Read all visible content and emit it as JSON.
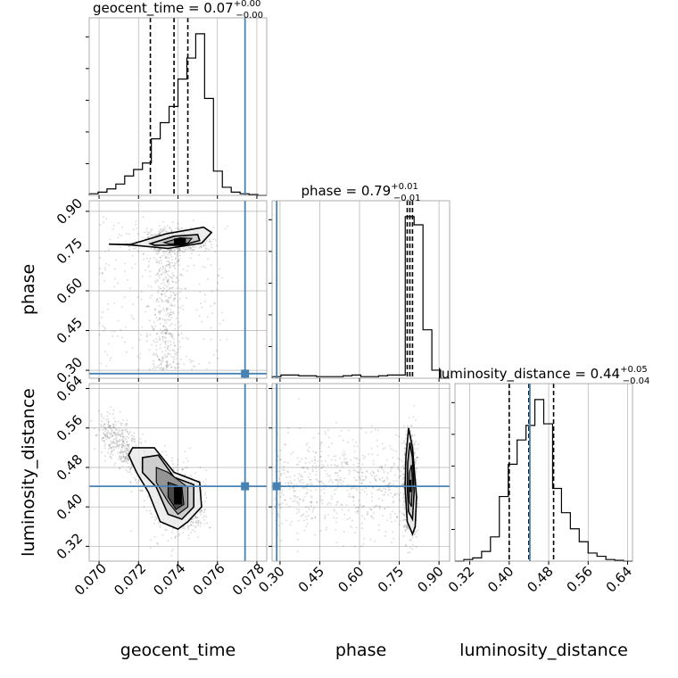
{
  "chart_data": {
    "type": "corner",
    "true_color": "#4682b4",
    "parameters": [
      {
        "name": "geocent_time",
        "axis_label": "geocent_time",
        "range": [
          0.0695,
          0.0785
        ],
        "ticks": [
          0.07,
          0.072,
          0.074,
          0.076,
          0.078
        ],
        "tick_labels": [
          "0.070",
          "0.072",
          "0.074",
          "0.076",
          "0.078"
        ],
        "true_value": 0.0774,
        "quantiles": [
          0.0726,
          0.0738,
          0.0745
        ],
        "title_prefix": "geocent_time = 0.07",
        "title_plus": "+0.00",
        "title_minus": "−0.00",
        "hist": {
          "edges_start": 0.0695,
          "bin_width": 0.00045,
          "counts": [
            0.01,
            0.02,
            0.04,
            0.07,
            0.12,
            0.16,
            0.2,
            0.35,
            0.45,
            0.55,
            0.72,
            0.85,
            1.0,
            0.6,
            0.15,
            0.05,
            0.02,
            0.01,
            0.005,
            0.0
          ]
        }
      },
      {
        "name": "phase",
        "axis_label": "phase",
        "range": [
          0.27,
          0.94
        ],
        "ticks": [
          0.3,
          0.45,
          0.6,
          0.75,
          0.9
        ],
        "tick_labels": [
          "0.30",
          "0.45",
          "0.60",
          "0.75",
          "0.90"
        ],
        "true_value": 0.2874,
        "quantiles": [
          0.78,
          0.79,
          0.8
        ],
        "title_prefix": "phase = 0.79",
        "title_plus": "+0.01",
        "title_minus": "−0.01",
        "hist": {
          "edges_start": 0.27,
          "bin_width": 0.0335,
          "counts": [
            0.01,
            0.02,
            0.02,
            0.015,
            0.015,
            0.01,
            0.01,
            0.01,
            0.015,
            0.02,
            0.01,
            0.01,
            0.015,
            0.02,
            0.02,
            1.0,
            0.95,
            0.3,
            0.05,
            0.0
          ]
        }
      },
      {
        "name": "luminosity_distance",
        "axis_label": "luminosity_distance",
        "range": [
          0.29,
          0.65
        ],
        "ticks": [
          0.32,
          0.4,
          0.48,
          0.56,
          0.64
        ],
        "tick_labels": [
          "0.32",
          "0.40",
          "0.48",
          "0.56",
          "0.64"
        ],
        "true_value": 0.4418,
        "quantiles": [
          0.4,
          0.44,
          0.49
        ],
        "title_prefix": "luminosity_distance = 0.44",
        "title_plus": "+0.05",
        "title_minus": "−0.04",
        "hist": {
          "edges_start": 0.29,
          "bin_width": 0.018,
          "counts": [
            0.0,
            0.01,
            0.02,
            0.06,
            0.15,
            0.4,
            0.6,
            0.75,
            0.84,
            1.0,
            0.85,
            0.45,
            0.3,
            0.2,
            0.12,
            0.05,
            0.03,
            0.01,
            0.005,
            0.0
          ]
        }
      }
    ],
    "contours": {
      "1-0": [
        [
          [
            0.0716,
            0.775
          ],
          [
            0.0734,
            0.815
          ],
          [
            0.0753,
            0.84
          ],
          [
            0.0757,
            0.82
          ],
          [
            0.0752,
            0.78
          ],
          [
            0.0735,
            0.76
          ],
          [
            0.0716,
            0.773
          ],
          [
            0.0705,
            0.776
          ],
          [
            0.0716,
            0.775
          ]
        ],
        [
          [
            0.0726,
            0.778
          ],
          [
            0.0738,
            0.806
          ],
          [
            0.075,
            0.812
          ],
          [
            0.0751,
            0.79
          ],
          [
            0.0742,
            0.772
          ],
          [
            0.0728,
            0.772
          ],
          [
            0.0726,
            0.778
          ]
        ],
        [
          [
            0.0733,
            0.782
          ],
          [
            0.0741,
            0.8
          ],
          [
            0.0747,
            0.798
          ],
          [
            0.0745,
            0.78
          ],
          [
            0.0736,
            0.776
          ],
          [
            0.0733,
            0.782
          ]
        ]
      ],
      "2-0": [
        [
          [
            0.0717,
            0.52
          ],
          [
            0.0728,
            0.52
          ],
          [
            0.0738,
            0.47
          ],
          [
            0.0751,
            0.45
          ],
          [
            0.0752,
            0.4
          ],
          [
            0.0745,
            0.37
          ],
          [
            0.074,
            0.355
          ],
          [
            0.0731,
            0.37
          ],
          [
            0.0725,
            0.43
          ],
          [
            0.0719,
            0.47
          ],
          [
            0.0715,
            0.505
          ],
          [
            0.0717,
            0.52
          ]
        ],
        [
          [
            0.0722,
            0.5
          ],
          [
            0.073,
            0.505
          ],
          [
            0.0738,
            0.46
          ],
          [
            0.0748,
            0.445
          ],
          [
            0.0748,
            0.4
          ],
          [
            0.0742,
            0.375
          ],
          [
            0.0735,
            0.385
          ],
          [
            0.0729,
            0.44
          ],
          [
            0.0722,
            0.47
          ],
          [
            0.0722,
            0.5
          ]
        ],
        [
          [
            0.0729,
            0.48
          ],
          [
            0.0735,
            0.47
          ],
          [
            0.0745,
            0.44
          ],
          [
            0.0745,
            0.4
          ],
          [
            0.074,
            0.385
          ],
          [
            0.0735,
            0.41
          ],
          [
            0.0729,
            0.45
          ],
          [
            0.0729,
            0.48
          ]
        ],
        [
          [
            0.0735,
            0.45
          ],
          [
            0.0742,
            0.44
          ],
          [
            0.0743,
            0.405
          ],
          [
            0.0739,
            0.395
          ],
          [
            0.0735,
            0.42
          ],
          [
            0.0735,
            0.45
          ]
        ]
      ],
      "2-1": [
        [
          [
            0.775,
            0.5
          ],
          [
            0.785,
            0.56
          ],
          [
            0.8,
            0.52
          ],
          [
            0.815,
            0.42
          ],
          [
            0.81,
            0.36
          ],
          [
            0.8,
            0.345
          ],
          [
            0.78,
            0.37
          ],
          [
            0.772,
            0.44
          ],
          [
            0.775,
            0.5
          ]
        ],
        [
          [
            0.782,
            0.49
          ],
          [
            0.79,
            0.53
          ],
          [
            0.8,
            0.5
          ],
          [
            0.806,
            0.43
          ],
          [
            0.8,
            0.375
          ],
          [
            0.785,
            0.39
          ],
          [
            0.78,
            0.44
          ],
          [
            0.782,
            0.49
          ]
        ],
        [
          [
            0.788,
            0.47
          ],
          [
            0.796,
            0.485
          ],
          [
            0.8,
            0.45
          ],
          [
            0.796,
            0.4
          ],
          [
            0.788,
            0.41
          ],
          [
            0.785,
            0.44
          ],
          [
            0.788,
            0.47
          ]
        ]
      ]
    },
    "hotspots": {
      "1-0": [
        0.0738,
        0.0744,
        0.772,
        0.798
      ],
      "2-0": [
        0.0738,
        0.0742,
        0.405,
        0.44
      ],
      "2-1": [
        0.788,
        0.796,
        0.43,
        0.455
      ]
    }
  }
}
